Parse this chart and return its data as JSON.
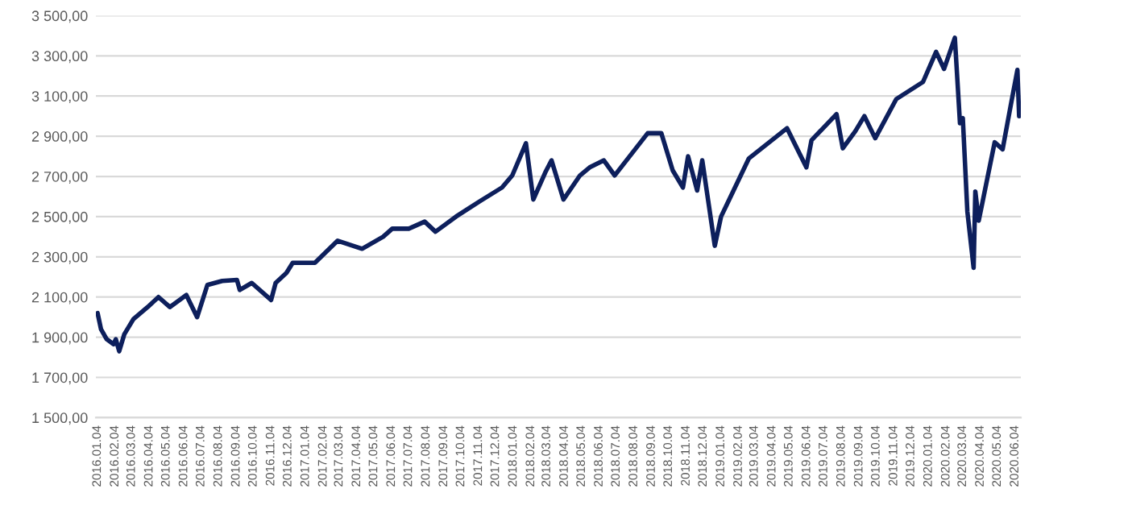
{
  "chart_data": {
    "type": "line",
    "grid": "y",
    "line_style": "solid",
    "marker": "none",
    "xlim": [
      "2016-01-01",
      "2020-06-14"
    ],
    "ylim": [
      1500,
      3500
    ],
    "yticks": [
      {
        "value": 1500,
        "label": "1 500,00"
      },
      {
        "value": 1700,
        "label": "1 700,00"
      },
      {
        "value": 1900,
        "label": "1 900,00"
      },
      {
        "value": 2100,
        "label": "2 100,00"
      },
      {
        "value": 2300,
        "label": "2 300,00"
      },
      {
        "value": 2500,
        "label": "2 500,00"
      },
      {
        "value": 2700,
        "label": "2 700,00"
      },
      {
        "value": 2900,
        "label": "2 900,00"
      },
      {
        "value": 3100,
        "label": "3 100,00"
      },
      {
        "value": 3300,
        "label": "3 300,00"
      },
      {
        "value": 3500,
        "label": "3 500,00"
      }
    ],
    "xticks": [
      {
        "value": "2016-01-04",
        "label": "2016.01.04"
      },
      {
        "value": "2016-02-04",
        "label": "2016.02.04"
      },
      {
        "value": "2016-03-04",
        "label": "2016.03.04"
      },
      {
        "value": "2016-04-04",
        "label": "2016.04.04"
      },
      {
        "value": "2016-05-04",
        "label": "2016.05.04"
      },
      {
        "value": "2016-06-04",
        "label": "2016.06.04"
      },
      {
        "value": "2016-07-04",
        "label": "2016.07.04"
      },
      {
        "value": "2016-08-04",
        "label": "2016.08.04"
      },
      {
        "value": "2016-09-04",
        "label": "2016.09.04"
      },
      {
        "value": "2016-10-04",
        "label": "2016.10.04"
      },
      {
        "value": "2016-11-04",
        "label": "2016.11.04"
      },
      {
        "value": "2016-12-04",
        "label": "2016.12.04"
      },
      {
        "value": "2017-01-04",
        "label": "2017.01.04"
      },
      {
        "value": "2017-02-04",
        "label": "2017.02.04"
      },
      {
        "value": "2017-03-04",
        "label": "2017.03.04"
      },
      {
        "value": "2017-04-04",
        "label": "2017.04.04"
      },
      {
        "value": "2017-05-04",
        "label": "2017.05.04"
      },
      {
        "value": "2017-06-04",
        "label": "2017.06.04"
      },
      {
        "value": "2017-07-04",
        "label": "2017.07.04"
      },
      {
        "value": "2017-08-04",
        "label": "2017.08.04"
      },
      {
        "value": "2017-09-04",
        "label": "2017.09.04"
      },
      {
        "value": "2017-10-04",
        "label": "2017.10.04"
      },
      {
        "value": "2017-11-04",
        "label": "2017.11.04"
      },
      {
        "value": "2017-12-04",
        "label": "2017.12.04"
      },
      {
        "value": "2018-01-04",
        "label": "2018.01.04"
      },
      {
        "value": "2018-02-04",
        "label": "2018.02.04"
      },
      {
        "value": "2018-03-04",
        "label": "2018.03.04"
      },
      {
        "value": "2018-04-04",
        "label": "2018.04.04"
      },
      {
        "value": "2018-05-04",
        "label": "2018.05.04"
      },
      {
        "value": "2018-06-04",
        "label": "2018.06.04"
      },
      {
        "value": "2018-07-04",
        "label": "2018.07.04"
      },
      {
        "value": "2018-08-04",
        "label": "2018.08.04"
      },
      {
        "value": "2018-09-04",
        "label": "2018.09.04"
      },
      {
        "value": "2018-10-04",
        "label": "2018.10.04"
      },
      {
        "value": "2018-11-04",
        "label": "2018.11.04"
      },
      {
        "value": "2018-12-04",
        "label": "2018.12.04"
      },
      {
        "value": "2019-01-04",
        "label": "2019.01.04"
      },
      {
        "value": "2019-02-04",
        "label": "2019.02.04"
      },
      {
        "value": "2019-03-04",
        "label": "2019.03.04"
      },
      {
        "value": "2019-04-04",
        "label": "2019.04.04"
      },
      {
        "value": "2019-05-04",
        "label": "2019.05.04"
      },
      {
        "value": "2019-06-04",
        "label": "2019.06.04"
      },
      {
        "value": "2019-07-04",
        "label": "2019.07.04"
      },
      {
        "value": "2019-08-04",
        "label": "2019.08.04"
      },
      {
        "value": "2019-09-04",
        "label": "2019.09.04"
      },
      {
        "value": "2019-10-04",
        "label": "2019.10.04"
      },
      {
        "value": "2019-11-04",
        "label": "2019.11.04"
      },
      {
        "value": "2019-12-04",
        "label": "2019.12.04"
      },
      {
        "value": "2020-01-04",
        "label": "2020.01.04"
      },
      {
        "value": "2020-02-04",
        "label": "2020.02.04"
      },
      {
        "value": "2020-03-04",
        "label": "2020.03.04"
      },
      {
        "value": "2020-04-04",
        "label": "2020.04.04"
      },
      {
        "value": "2020-05-04",
        "label": "2020.05.04"
      },
      {
        "value": "2020-06-04",
        "label": "2020.06.04"
      }
    ],
    "series": [
      {
        "color": "#0d1f5c",
        "x": [
          "2016-01-04",
          "2016-01-10",
          "2016-01-20",
          "2016-02-01",
          "2016-02-05",
          "2016-02-11",
          "2016-02-20",
          "2016-03-07",
          "2016-04-01",
          "2016-04-20",
          "2016-05-10",
          "2016-06-08",
          "2016-06-27",
          "2016-07-15",
          "2016-08-10",
          "2016-09-05",
          "2016-09-10",
          "2016-10-01",
          "2016-11-04",
          "2016-11-12",
          "2016-12-01",
          "2016-12-12",
          "2017-01-20",
          "2017-03-01",
          "2017-04-13",
          "2017-05-20",
          "2017-06-05",
          "2017-07-04",
          "2017-08-01",
          "2017-08-20",
          "2017-09-25",
          "2017-11-05",
          "2017-12-15",
          "2018-01-02",
          "2018-01-26",
          "2018-02-08",
          "2018-03-01",
          "2018-03-12",
          "2018-04-02",
          "2018-05-01",
          "2018-05-18",
          "2018-06-12",
          "2018-07-01",
          "2018-08-28",
          "2018-09-21",
          "2018-10-11",
          "2018-10-29",
          "2018-11-07",
          "2018-11-23",
          "2018-12-02",
          "2018-12-24",
          "2019-01-04",
          "2019-02-22",
          "2019-04-30",
          "2019-06-03",
          "2019-06-12",
          "2019-07-26",
          "2019-08-06",
          "2019-08-28",
          "2019-09-13",
          "2019-10-02",
          "2019-11-08",
          "2019-12-25",
          "2020-01-17",
          "2020-01-31",
          "2020-02-19",
          "2020-02-28",
          "2020-03-04",
          "2020-03-12",
          "2020-03-23",
          "2020-03-26",
          "2020-04-01",
          "2020-04-29",
          "2020-05-13",
          "2020-05-27",
          "2020-06-08",
          "2020-06-11"
        ],
        "values": [
          2020,
          1940,
          1890,
          1865,
          1890,
          1830,
          1915,
          1990,
          2050,
          2100,
          2050,
          2110,
          2000,
          2160,
          2180,
          2185,
          2135,
          2170,
          2085,
          2170,
          2220,
          2270,
          2270,
          2380,
          2340,
          2400,
          2440,
          2440,
          2475,
          2425,
          2500,
          2575,
          2645,
          2705,
          2865,
          2585,
          2720,
          2780,
          2585,
          2705,
          2745,
          2780,
          2705,
          2915,
          2915,
          2730,
          2645,
          2800,
          2630,
          2780,
          2355,
          2500,
          2790,
          2940,
          2745,
          2880,
          3010,
          2840,
          2925,
          3000,
          2890,
          3085,
          3170,
          3320,
          3235,
          3390,
          2965,
          2990,
          2525,
          2245,
          2625,
          2480,
          2870,
          2835,
          3050,
          3230,
          3000
        ]
      }
    ]
  }
}
